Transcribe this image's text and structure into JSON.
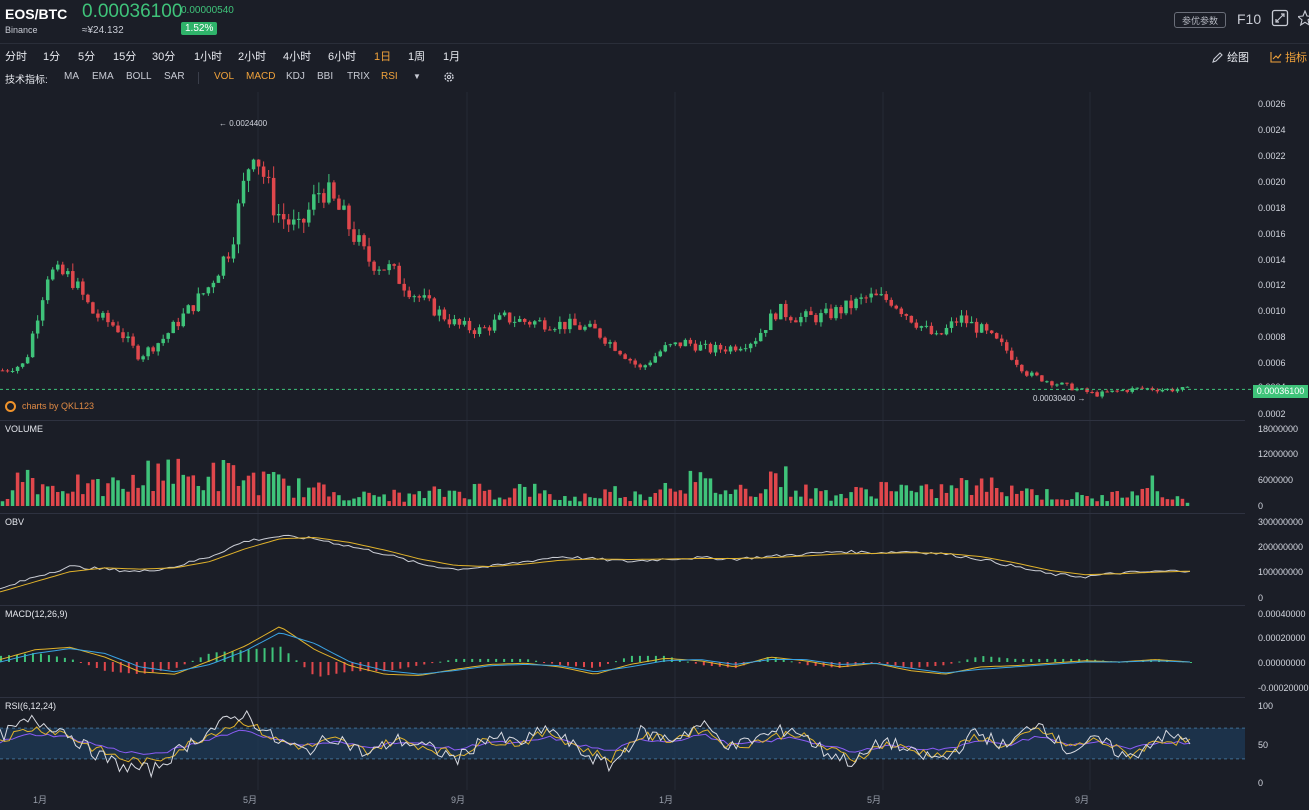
{
  "header": {
    "pair": "EOS/BTC",
    "exchange": "Binance",
    "price": "0.00036100",
    "price_cny": "≈¥24.132",
    "change": "0.00000540",
    "change_pct": "1.52%",
    "params_button": "参优参数",
    "f10": "F10"
  },
  "intervals": [
    {
      "label": "分时"
    },
    {
      "label": "1分"
    },
    {
      "label": "5分"
    },
    {
      "label": "15分"
    },
    {
      "label": "30分"
    },
    {
      "label": "1小时"
    },
    {
      "label": "2小时"
    },
    {
      "label": "4小时"
    },
    {
      "label": "6小时"
    },
    {
      "label": "1日",
      "active": true
    },
    {
      "label": "1周"
    },
    {
      "label": "1月"
    }
  ],
  "tools": {
    "draw": "绘图",
    "indicators": "指标"
  },
  "indicator_bar": {
    "label": "技术指标:",
    "main": [
      "MA",
      "EMA",
      "BOLL",
      "SAR"
    ],
    "sub": [
      "VOL",
      "MACD",
      "KDJ",
      "BBI",
      "TRIX",
      "RSI"
    ],
    "sub_active": [
      "VOL",
      "MACD",
      "RSI"
    ]
  },
  "credit": "charts by QKL123",
  "colors": {
    "up": "#3fc37a",
    "down": "#e0474c",
    "accent": "#f0a23b",
    "bg": "#1b1e27"
  },
  "chart_data": [
    {
      "type": "candlestick",
      "title": "",
      "y_ticks": [
        "0.0026",
        "0.0024",
        "0.0022",
        "0.0020",
        "0.0018",
        "0.0016",
        "0.0014",
        "0.0012",
        "0.0010",
        "0.0008",
        "0.0006",
        "0.0004",
        "0.0002"
      ],
      "ylim": [
        0.0002,
        0.0026
      ],
      "x_ticks": [
        "1月",
        "5月",
        "9月",
        "1月",
        "5月",
        "9月"
      ],
      "close_series": [
        0.00051,
        0.00056,
        0.00128,
        0.00124,
        0.00095,
        0.00085,
        0.00062,
        0.00075,
        0.00095,
        0.00115,
        0.00148,
        0.00228,
        0.00175,
        0.0016,
        0.00195,
        0.0017,
        0.00138,
        0.0013,
        0.00112,
        0.00098,
        0.00086,
        0.00082,
        0.00092,
        0.00089,
        0.00088,
        0.00086,
        0.00082,
        0.00068,
        0.00052,
        0.00068,
        0.00073,
        0.00067,
        0.00069,
        0.00075,
        0.00098,
        0.00092,
        0.00093,
        0.001,
        0.00108,
        0.00106,
        0.0009,
        0.00076,
        0.00092,
        0.00082,
        0.00068,
        0.00048,
        0.00042,
        0.00037,
        0.00032,
        0.00035,
        0.00037,
        0.00036,
        0.000361
      ],
      "high_label": "0.0024400",
      "low_label": "0.00030400",
      "last_label": "0.00036100"
    },
    {
      "type": "bar",
      "title": "VOLUME",
      "y_ticks": [
        "18000000",
        "12000000",
        "6000000",
        "0"
      ],
      "ylim": [
        0,
        18000000
      ],
      "values": [
        3000000,
        9000000,
        5000000,
        6000000,
        4500000,
        5500000,
        6000000,
        12000000,
        7000000,
        8000000,
        8500000,
        7000000,
        6000000,
        5000000,
        4000000,
        3500000,
        2500000,
        3000000,
        2500000,
        3500000,
        4000000,
        4500000,
        3000000,
        5000000,
        2500000,
        2000000,
        3000000,
        4000000,
        2500000,
        6000000,
        7000000,
        5500000,
        4000000,
        5000000,
        9000000,
        4000000,
        3500000,
        3000000,
        4000000,
        6000000,
        3500000,
        4000000,
        5500000,
        5000000,
        6000000,
        4000000,
        3000000,
        2500000,
        2000000,
        3000000,
        8000000,
        2500000,
        2000000
      ]
    },
    {
      "type": "line",
      "title": "OBV",
      "y_ticks": [
        "300000000",
        "200000000",
        "100000000",
        "0"
      ],
      "ylim": [
        0,
        300000000
      ],
      "series": [
        {
          "values": [
            30000000,
            80000000,
            120000000,
            110000000,
            100000000,
            120000000,
            160000000,
            220000000,
            240000000,
            230000000,
            200000000,
            170000000,
            130000000,
            110000000,
            120000000,
            140000000,
            160000000,
            150000000,
            140000000,
            150000000,
            155000000,
            150000000,
            160000000,
            170000000,
            180000000,
            175000000,
            180000000,
            170000000,
            150000000,
            120000000,
            90000000,
            80000000,
            95000000,
            100000000,
            105000000
          ]
        },
        {
          "values": [
            20000000,
            60000000,
            100000000,
            115000000,
            110000000,
            115000000,
            140000000,
            190000000,
            230000000,
            235000000,
            215000000,
            185000000,
            150000000,
            125000000,
            120000000,
            130000000,
            145000000,
            150000000,
            148000000,
            150000000,
            152000000,
            152000000,
            155000000,
            162000000,
            170000000,
            172000000,
            175000000,
            172000000,
            160000000,
            135000000,
            105000000,
            88000000,
            92000000,
            98000000,
            102000000
          ]
        }
      ]
    },
    {
      "type": "line",
      "title": "MACD(12,26,9)",
      "y_ticks": [
        "0.00040000",
        "0.00020000",
        "0.00000000",
        "-0.00020000"
      ],
      "ylim": [
        -0.0003,
        0.0005
      ],
      "series": [
        {
          "values": [
            2e-05,
            0.0001,
            0.00012,
            4e-05,
            -8e-05,
            -0.0001,
            1e-05,
            0.00013,
            0.00029,
            0.0001,
            -3e-05,
            -0.0001,
            -0.00011,
            -6e-05,
            -2e-05,
            -1e-05,
            -4e-05,
            -0.0001,
            -2e-05,
            3e-05,
            1e-05,
            -4e-05,
            4e-05,
            1e-05,
            -4e-05,
            -1e-05,
            -7e-05,
            -0.0001,
            -4e-05,
            -3e-05,
            -1e-05,
            1e-05,
            0.0,
            2e-05,
            0.0
          ]
        },
        {
          "values": [
            0.0,
            7e-05,
            0.00011,
            7e-05,
            -4e-05,
            -8e-05,
            -2e-05,
            9e-05,
            0.00024,
            0.00015,
            0.0,
            -7e-05,
            -0.0001,
            -7e-05,
            -3e-05,
            -2e-05,
            -3e-05,
            -8e-05,
            -4e-05,
            1e-05,
            2e-05,
            -2e-05,
            2e-05,
            2e-05,
            -2e-05,
            -1e-05,
            -5e-05,
            -9e-05,
            -6e-05,
            -4e-05,
            -2e-05,
            0.0,
            0.0,
            1e-05,
            0.0
          ]
        }
      ]
    },
    {
      "type": "line",
      "title": "RSI(6,12,24)",
      "y_ticks": [
        "100",
        "50",
        "0"
      ],
      "ylim": [
        0,
        100
      ],
      "series": [
        {
          "values": [
            60,
            80,
            70,
            40,
            20,
            15,
            45,
            70,
            90,
            55,
            40,
            60,
            35,
            55,
            45,
            30,
            60,
            50,
            70,
            40,
            20,
            65,
            55,
            75,
            45,
            60,
            70,
            40,
            25,
            55,
            35,
            30,
            65,
            45,
            80,
            40,
            55,
            30,
            60,
            55
          ]
        },
        {
          "values": [
            55,
            70,
            65,
            45,
            30,
            25,
            45,
            65,
            80,
            55,
            45,
            55,
            40,
            55,
            45,
            35,
            55,
            50,
            65,
            45,
            30,
            60,
            55,
            70,
            45,
            55,
            65,
            45,
            30,
            50,
            40,
            35,
            60,
            45,
            70,
            45,
            55,
            35,
            55,
            52
          ]
        },
        {
          "values": [
            52,
            62,
            60,
            50,
            40,
            35,
            45,
            58,
            68,
            55,
            48,
            52,
            45,
            52,
            48,
            42,
            52,
            50,
            58,
            48,
            40,
            55,
            53,
            62,
            48,
            52,
            58,
            48,
            38,
            48,
            44,
            42,
            55,
            47,
            60,
            48,
            52,
            42,
            52,
            51
          ]
        }
      ]
    }
  ]
}
